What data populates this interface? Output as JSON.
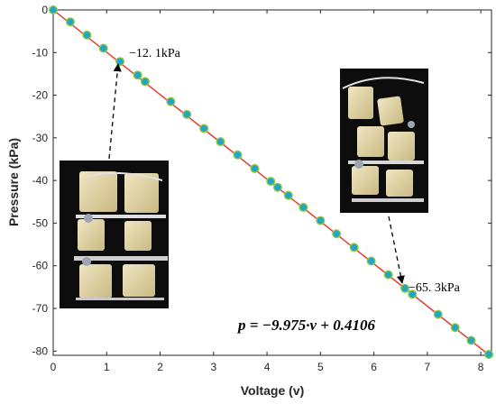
{
  "chart_data": {
    "type": "scatter",
    "xlabel": "Voltage (v)",
    "ylabel": "Pressure (kPa)",
    "xlim": [
      0,
      8.2
    ],
    "ylim": [
      -81,
      0
    ],
    "x_ticks": [
      0,
      1,
      2,
      3,
      4,
      5,
      6,
      7,
      8
    ],
    "y_ticks": [
      0,
      -10,
      -20,
      -30,
      -40,
      -50,
      -60,
      -70,
      -80
    ],
    "grid": false,
    "fit_line": {
      "slope": -9.975,
      "intercept": 0.4106,
      "color": "#e8302a"
    },
    "equation": "p = −9.975·v + 0.4106",
    "marker_color": "#1ea7c9",
    "marker_edge_color": "#8ec640",
    "points": [
      {
        "x": 0.0,
        "y": 0.0
      },
      {
        "x": 0.32,
        "y": -2.8
      },
      {
        "x": 0.63,
        "y": -5.9
      },
      {
        "x": 0.94,
        "y": -9.0
      },
      {
        "x": 1.25,
        "y": -12.1
      },
      {
        "x": 1.58,
        "y": -15.3
      },
      {
        "x": 1.72,
        "y": -16.8
      },
      {
        "x": 2.2,
        "y": -21.5
      },
      {
        "x": 2.5,
        "y": -24.5
      },
      {
        "x": 2.82,
        "y": -27.8
      },
      {
        "x": 3.13,
        "y": -30.9
      },
      {
        "x": 3.45,
        "y": -34.0
      },
      {
        "x": 3.77,
        "y": -37.2
      },
      {
        "x": 4.07,
        "y": -40.2
      },
      {
        "x": 4.2,
        "y": -41.6
      },
      {
        "x": 4.4,
        "y": -43.5
      },
      {
        "x": 4.68,
        "y": -46.3
      },
      {
        "x": 5.0,
        "y": -49.4
      },
      {
        "x": 5.3,
        "y": -52.5
      },
      {
        "x": 5.63,
        "y": -55.7
      },
      {
        "x": 5.95,
        "y": -58.9
      },
      {
        "x": 6.27,
        "y": -62.1
      },
      {
        "x": 6.58,
        "y": -65.3
      },
      {
        "x": 6.72,
        "y": -66.7
      },
      {
        "x": 7.2,
        "y": -71.4
      },
      {
        "x": 7.52,
        "y": -74.5
      },
      {
        "x": 7.82,
        "y": -77.5
      },
      {
        "x": 8.15,
        "y": -80.8
      }
    ],
    "annotations": [
      {
        "text": "−12. 1kPa",
        "x": 1.25,
        "y": -12.1
      },
      {
        "text": "−65. 3kPa",
        "x": 6.58,
        "y": -65.3
      }
    ]
  }
}
